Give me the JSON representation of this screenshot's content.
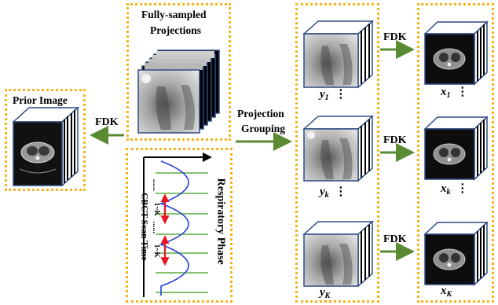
{
  "prior": {
    "title": "Prior Image"
  },
  "projections": {
    "title_line1": "Fully-sampled",
    "title_line2": "Projections"
  },
  "arrows": {
    "fdk_left": "FDK",
    "grouping_line1": "Projection",
    "grouping_line2": "Grouping",
    "fdk_1": "FDK",
    "fdk_k": "FDK",
    "fdk_K": "FDK"
  },
  "groups": [
    {
      "var": "y",
      "sub": "1",
      "dots": "⋮"
    },
    {
      "var": "y",
      "sub": "k",
      "dots": "⋮"
    },
    {
      "var": "y",
      "sub": "K",
      "dots": ""
    }
  ],
  "recons": [
    {
      "var": "x",
      "sub": "1",
      "dots": "⋮"
    },
    {
      "var": "x",
      "sub": "k",
      "dots": "⋮"
    },
    {
      "var": "x",
      "sub": "K",
      "dots": ""
    }
  ],
  "resp": {
    "phase_label": "Respiratory Phase",
    "time_label": "CBCT Scan Time",
    "range_label_1": "1~K",
    "range_label_2": "1~K",
    "ellipsis_1": "......",
    "ellipsis_2": "......"
  },
  "colors": {
    "dotted_border": "#f4b41a",
    "arrow_green": "#5a8a32",
    "arrow_red": "#e8141e",
    "wave_blue": "#1f3fd6",
    "wave_green": "#3d9a1e",
    "cube_edge": "#2f4a80"
  }
}
